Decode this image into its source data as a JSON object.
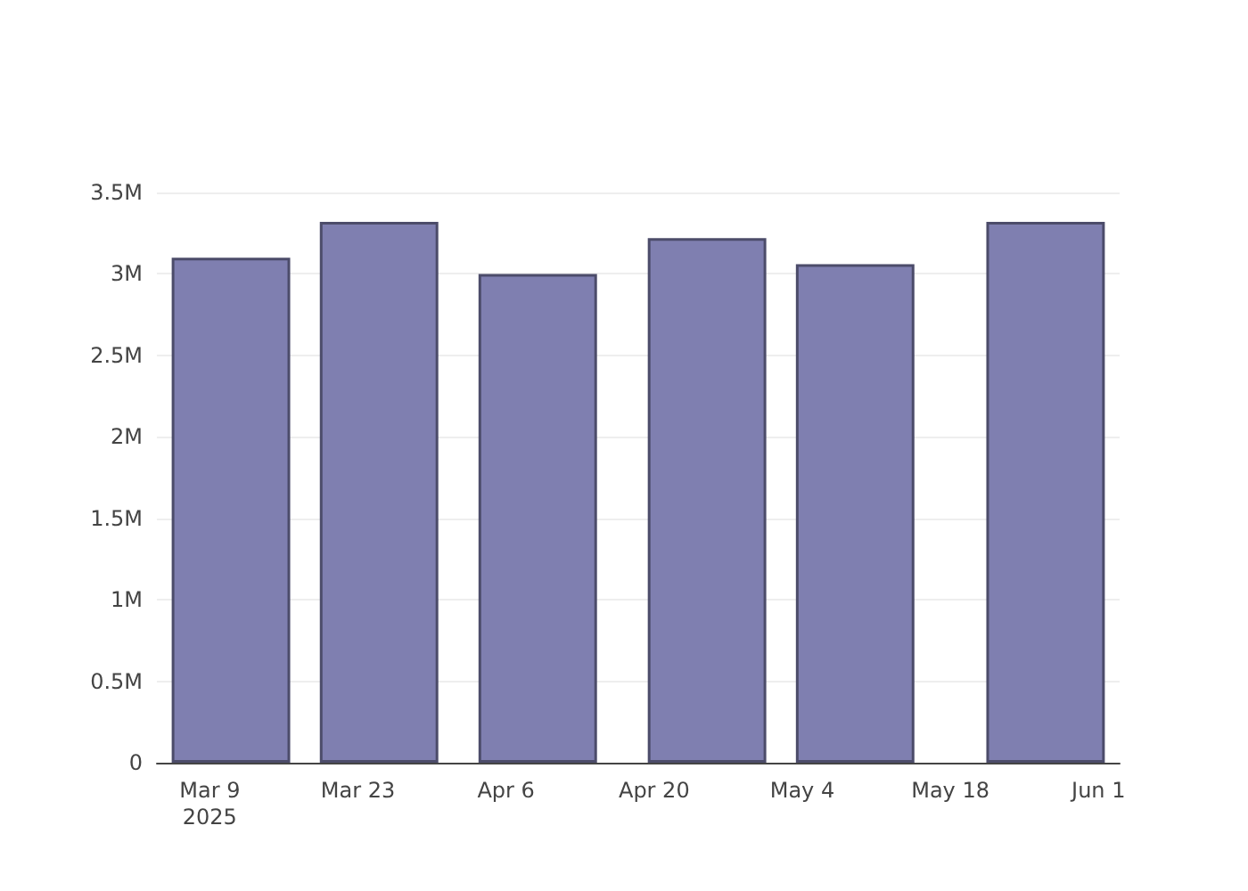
{
  "chart_data": {
    "type": "bar",
    "x": [
      "2025-03-11",
      "2025-03-25",
      "2025-04-09",
      "2025-04-25",
      "2025-05-09",
      "2025-05-27"
    ],
    "values": [
      3100000,
      3320000,
      3000000,
      3220000,
      3060000,
      3320000
    ],
    "color": "#7f7fb0",
    "xlim": [
      "2025-03-04",
      "2025-06-03"
    ],
    "xticks": [
      {
        "value": "2025-03-09",
        "label": "Mar 9\n2025"
      },
      {
        "value": "2025-03-23",
        "label": "Mar 23"
      },
      {
        "value": "2025-04-06",
        "label": "Apr 6"
      },
      {
        "value": "2025-04-20",
        "label": "Apr 20"
      },
      {
        "value": "2025-05-04",
        "label": "May 4"
      },
      {
        "value": "2025-05-18",
        "label": "May 18"
      },
      {
        "value": "2025-06-01",
        "label": "Jun 1"
      }
    ],
    "ylim": [
      0,
      3500000
    ],
    "yticks": [
      0,
      {
        "value": 500000,
        "label": "0.5M"
      },
      {
        "value": 1000000,
        "label": "1M"
      },
      {
        "value": 1500000,
        "label": "1.5M"
      },
      {
        "value": 2000000,
        "label": "2M"
      },
      {
        "value": 2500000,
        "label": "2.5M"
      },
      {
        "value": 3000000,
        "label": "3M"
      },
      {
        "value": 3500000,
        "label": "3.5M"
      }
    ],
    "grid": "y"
  }
}
